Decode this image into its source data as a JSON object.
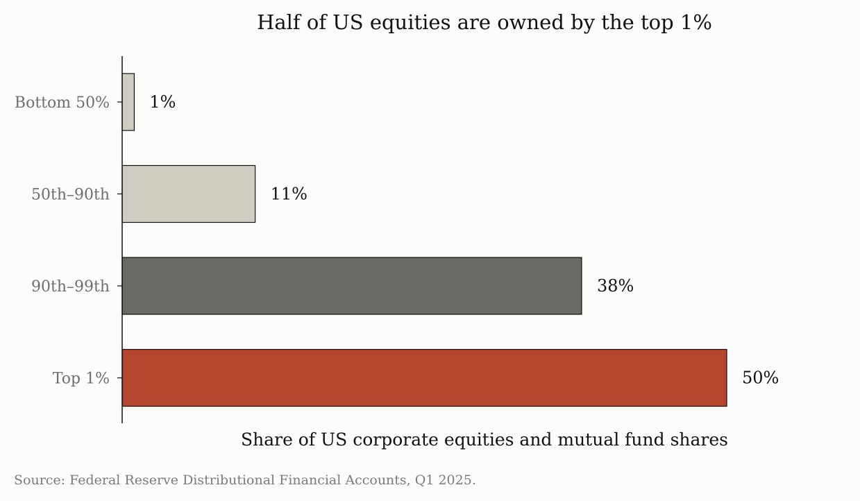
{
  "chart_data": {
    "type": "bar",
    "orientation": "horizontal",
    "title": "Half of US equities are owned by the top 1%",
    "xlabel": "Share of US corporate equities and mutual fund shares",
    "ylabel": "",
    "categories": [
      "Bottom 50%",
      "50th–90th",
      "90th–99th",
      "Top 1%"
    ],
    "values": [
      1,
      11,
      38,
      50
    ],
    "data_labels": [
      "1%",
      "11%",
      "38%",
      "50%"
    ],
    "xlim": [
      0,
      50
    ],
    "colors": [
      "#cfccc1",
      "#cfccc1",
      "#6a6a64",
      "#b5452e"
    ],
    "grid": false,
    "x_axis_visible": false
  },
  "source": "Source: Federal Reserve Distributional Financial Accounts, Q1 2025."
}
